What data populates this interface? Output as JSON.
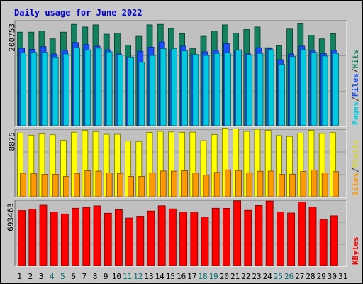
{
  "chart_data": [
    {
      "type": "bar",
      "title": "Daily usage for June 2022",
      "y_max_label": "200753",
      "right_labels": [
        {
          "text": "Pages",
          "color": "#00c8e0"
        },
        {
          "text": "/",
          "color": "#2a2a2a"
        },
        {
          "text": "Files",
          "color": "#1a4fff"
        },
        {
          "text": "/",
          "color": "#2a2a2a"
        },
        {
          "text": "Hits",
          "color": "#138060"
        }
      ],
      "ylim": [
        0,
        200753
      ],
      "series": [
        {
          "name": "Hits",
          "color": "#138060",
          "values": [
            180000,
            180000,
            182000,
            167000,
            180000,
            195000,
            190000,
            194000,
            176000,
            178000,
            155000,
            172000,
            194000,
            195000,
            187000,
            177000,
            148000,
            172000,
            182000,
            194000,
            178000,
            185000,
            190000,
            150000,
            154000,
            186000,
            196000,
            174000,
            167000,
            177000
          ]
        },
        {
          "name": "Files",
          "color": "#1a4fff",
          "values": [
            149000,
            147000,
            152000,
            138000,
            145000,
            160000,
            156000,
            153000,
            146000,
            138000,
            132000,
            143000,
            151000,
            161000,
            146000,
            153000,
            137000,
            142000,
            145000,
            158000,
            144000,
            138000,
            150000,
            148000,
            127000,
            138000,
            153000,
            145000,
            139000,
            145000
          ]
        },
        {
          "name": "Pages",
          "color": "#00c8e0",
          "values": [
            140000,
            141000,
            141000,
            132000,
            138000,
            150000,
            146000,
            149000,
            142000,
            136000,
            132000,
            122000,
            135000,
            148000,
            148000,
            144000,
            137000,
            135000,
            139000,
            140000,
            146000,
            136000,
            139000,
            146000,
            118000,
            133000,
            147000,
            141000,
            134000,
            139000
          ]
        }
      ]
    },
    {
      "type": "bar",
      "y_max_label": "8875",
      "right_labels": [
        {
          "text": "Sites",
          "color": "#ff9900"
        },
        {
          "text": "/",
          "color": "#2a2a2a"
        },
        {
          "text": "Visits",
          "color": "#d8d820"
        }
      ],
      "ylim": [
        0,
        8875
      ],
      "series": [
        {
          "name": "Visits",
          "color": "#ffff00",
          "values": [
            8470,
            8190,
            8360,
            8240,
            7490,
            8560,
            8830,
            8650,
            8300,
            8300,
            7390,
            7340,
            8540,
            8690,
            8610,
            8550,
            8580,
            7460,
            8260,
            9110,
            9020,
            8680,
            8960,
            8840,
            8130,
            8010,
            8450,
            8840,
            8400,
            8530
          ]
        },
        {
          "name": "Sites",
          "color": "#ff9900",
          "values": [
            3120,
            3050,
            2970,
            2960,
            2690,
            3110,
            3440,
            3390,
            3160,
            3100,
            2680,
            2700,
            3180,
            3410,
            3390,
            3450,
            3140,
            2860,
            3230,
            3570,
            3480,
            3180,
            3380,
            3400,
            2960,
            2990,
            3340,
            3550,
            3170,
            3330
          ]
        }
      ]
    },
    {
      "type": "bar",
      "y_max_label": "693463",
      "right_labels": [
        {
          "text": "KBytes",
          "color": "#ff0000"
        }
      ],
      "ylim": [
        0,
        693463
      ],
      "series": [
        {
          "name": "KBytes",
          "color": "#ff0000",
          "values": [
            590000,
            605000,
            648000,
            575000,
            554000,
            615000,
            623000,
            641000,
            562000,
            600000,
            510000,
            530000,
            585000,
            642000,
            608000,
            574000,
            574000,
            520000,
            615000,
            614000,
            694000,
            593000,
            645000,
            692000,
            575000,
            564000,
            683000,
            627000,
            495000,
            534000
          ]
        }
      ]
    }
  ],
  "x_labels": [
    {
      "text": "1",
      "weekend": false
    },
    {
      "text": "2",
      "weekend": false
    },
    {
      "text": "3",
      "weekend": false
    },
    {
      "text": "4",
      "weekend": true
    },
    {
      "text": "5",
      "weekend": true
    },
    {
      "text": "6",
      "weekend": false
    },
    {
      "text": "7",
      "weekend": false
    },
    {
      "text": "8",
      "weekend": false
    },
    {
      "text": "9",
      "weekend": false
    },
    {
      "text": "10",
      "weekend": false
    },
    {
      "text": "11",
      "weekend": true
    },
    {
      "text": "12",
      "weekend": true
    },
    {
      "text": "13",
      "weekend": false
    },
    {
      "text": "14",
      "weekend": false
    },
    {
      "text": "15",
      "weekend": false
    },
    {
      "text": "16",
      "weekend": false
    },
    {
      "text": "17",
      "weekend": false
    },
    {
      "text": "18",
      "weekend": true
    },
    {
      "text": "19",
      "weekend": true
    },
    {
      "text": "20",
      "weekend": false
    },
    {
      "text": "21",
      "weekend": false
    },
    {
      "text": "22",
      "weekend": false
    },
    {
      "text": "23",
      "weekend": false
    },
    {
      "text": "24",
      "weekend": false
    },
    {
      "text": "25",
      "weekend": true
    },
    {
      "text": "26",
      "weekend": true
    },
    {
      "text": "27",
      "weekend": false
    },
    {
      "text": "28",
      "weekend": false
    },
    {
      "text": "29",
      "weekend": false
    },
    {
      "text": "30",
      "weekend": false
    },
    {
      "text": "31",
      "weekend": false
    }
  ],
  "colors": {
    "title": "#0000cc",
    "text": "#000000",
    "weekend": "#007070",
    "panel_bg": "#c0c0c0",
    "frame_bg": "#c8c8c8"
  }
}
